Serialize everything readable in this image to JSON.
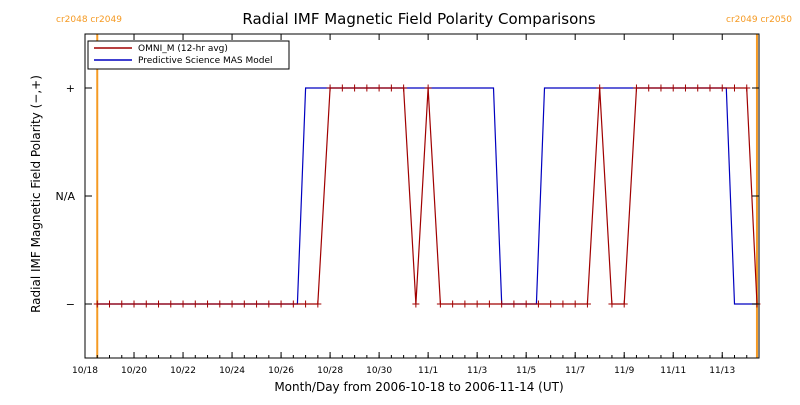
{
  "chart_data": {
    "type": "line",
    "title": "Radial IMF Magnetic Field Polarity Comparisons",
    "xlabel": "Month/Day from 2006-10-18 to 2006-11-14 (UT)",
    "ylabel": "Radial IMF Magnetic Field Polarity (−,+)",
    "x_range": [
      "2006-10-18T00:00",
      "2006-11-14T12:00"
    ],
    "y_range": [
      -1.5,
      1.5
    ],
    "y_ticks": [
      {
        "value": 1,
        "label": "+"
      },
      {
        "value": 0,
        "label": "N/A"
      },
      {
        "value": -1,
        "label": "−"
      }
    ],
    "x_ticks": [
      {
        "value": "2006-10-18",
        "label": "10/18"
      },
      {
        "value": "2006-10-20",
        "label": "10/20"
      },
      {
        "value": "2006-10-22",
        "label": "10/22"
      },
      {
        "value": "2006-10-24",
        "label": "10/24"
      },
      {
        "value": "2006-10-26",
        "label": "10/26"
      },
      {
        "value": "2006-10-28",
        "label": "10/28"
      },
      {
        "value": "2006-10-30",
        "label": "10/30"
      },
      {
        "value": "2006-11-01",
        "label": "11/1"
      },
      {
        "value": "2006-11-03",
        "label": "11/3"
      },
      {
        "value": "2006-11-05",
        "label": "11/5"
      },
      {
        "value": "2006-11-07",
        "label": "11/7"
      },
      {
        "value": "2006-11-09",
        "label": "11/9"
      },
      {
        "value": "2006-11-11",
        "label": "11/11"
      },
      {
        "value": "2006-11-13",
        "label": "11/13"
      }
    ],
    "grid": false,
    "legend_position": "top-left",
    "carrington_markers": [
      {
        "value": "2006-10-18T12:00",
        "label": "cr2048 cr2049",
        "label_side": "left"
      },
      {
        "value": "2006-11-14T10:00",
        "label": "cr2049 cr2050",
        "label_side": "right"
      }
    ],
    "series": [
      {
        "name": "OMNI_M (12-hr avg)",
        "color": "#a00000",
        "markers": true,
        "points": [
          [
            "2006-10-18T12:00",
            -1
          ],
          [
            "2006-10-19T00:00",
            -1
          ],
          [
            "2006-10-19T12:00",
            -1
          ],
          [
            "2006-10-20T00:00",
            -1
          ],
          [
            "2006-10-20T12:00",
            -1
          ],
          [
            "2006-10-21T00:00",
            -1
          ],
          [
            "2006-10-21T12:00",
            -1
          ],
          [
            "2006-10-22T00:00",
            -1
          ],
          [
            "2006-10-22T12:00",
            -1
          ],
          [
            "2006-10-23T00:00",
            -1
          ],
          [
            "2006-10-23T12:00",
            -1
          ],
          [
            "2006-10-24T00:00",
            -1
          ],
          [
            "2006-10-24T12:00",
            -1
          ],
          [
            "2006-10-25T00:00",
            -1
          ],
          [
            "2006-10-25T12:00",
            -1
          ],
          [
            "2006-10-26T00:00",
            -1
          ],
          [
            "2006-10-26T12:00",
            -1
          ],
          [
            "2006-10-27T00:00",
            -1
          ],
          [
            "2006-10-27T12:00",
            -1
          ],
          [
            "2006-10-28T00:00",
            1
          ],
          [
            "2006-10-28T12:00",
            1
          ],
          [
            "2006-10-29T00:00",
            1
          ],
          [
            "2006-10-29T12:00",
            1
          ],
          [
            "2006-10-30T00:00",
            1
          ],
          [
            "2006-10-30T12:00",
            1
          ],
          [
            "2006-10-31T00:00",
            1
          ],
          [
            "2006-10-31T12:00",
            -1
          ],
          [
            "2006-11-01T00:00",
            1
          ],
          [
            "2006-11-01T12:00",
            -1
          ],
          [
            "2006-11-02T00:00",
            -1
          ],
          [
            "2006-11-02T12:00",
            -1
          ],
          [
            "2006-11-03T00:00",
            -1
          ],
          [
            "2006-11-03T12:00",
            -1
          ],
          [
            "2006-11-04T00:00",
            -1
          ],
          [
            "2006-11-04T12:00",
            -1
          ],
          [
            "2006-11-05T00:00",
            -1
          ],
          [
            "2006-11-05T12:00",
            -1
          ],
          [
            "2006-11-06T00:00",
            -1
          ],
          [
            "2006-11-06T12:00",
            -1
          ],
          [
            "2006-11-07T00:00",
            -1
          ],
          [
            "2006-11-07T12:00",
            -1
          ],
          [
            "2006-11-08T00:00",
            1
          ],
          [
            "2006-11-08T12:00",
            -1
          ],
          [
            "2006-11-09T00:00",
            -1
          ],
          [
            "2006-11-09T12:00",
            1
          ],
          [
            "2006-11-10T00:00",
            1
          ],
          [
            "2006-11-10T12:00",
            1
          ],
          [
            "2006-11-11T00:00",
            1
          ],
          [
            "2006-11-11T12:00",
            1
          ],
          [
            "2006-11-12T00:00",
            1
          ],
          [
            "2006-11-12T12:00",
            1
          ],
          [
            "2006-11-13T00:00",
            1
          ],
          [
            "2006-11-13T12:00",
            1
          ],
          [
            "2006-11-14T00:00",
            1
          ],
          [
            "2006-11-14T10:00",
            -1
          ]
        ]
      },
      {
        "name": "Predictive Science MAS Model",
        "color": "#0000c0",
        "markers": false,
        "points": [
          [
            "2006-10-18T12:00",
            -1
          ],
          [
            "2006-10-26T16:00",
            -1
          ],
          [
            "2006-10-27T00:00",
            1
          ],
          [
            "2006-11-03T16:00",
            1
          ],
          [
            "2006-11-04T00:00",
            -1
          ],
          [
            "2006-11-05T10:00",
            -1
          ],
          [
            "2006-11-05T18:00",
            1
          ],
          [
            "2006-11-13T04:00",
            1
          ],
          [
            "2006-11-13T12:00",
            -1
          ],
          [
            "2006-11-14T10:00",
            -1
          ]
        ]
      }
    ]
  }
}
